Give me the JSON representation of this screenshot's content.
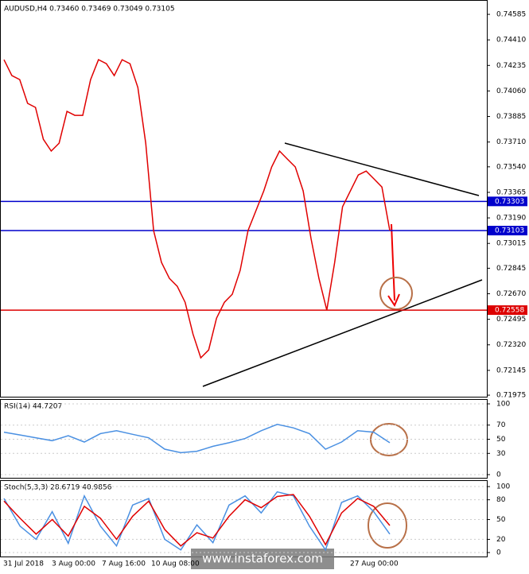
{
  "watermark": "www.instaforex.com",
  "time_labels": [
    "31 Jul 2018",
    "3 Aug 00:00",
    "7 Aug 16:00",
    "10 Aug 08:00",
    "27 Aug 00:00"
  ],
  "chart_data": [
    {
      "type": "line",
      "title": "AUDUSD,H4  0.73460 0.73469 0.73049 0.73105",
      "ylim": [
        0.71959,
        0.74667
      ],
      "yticks": [
        0.74585,
        {
          "value": 0.7441,
          "label": "0.74410"
        },
        0.74235,
        {
          "value": 0.7406,
          "label": "0.74060"
        },
        0.73885,
        {
          "value": 0.7371,
          "label": "0.73710"
        },
        {
          "value": 0.7354,
          "label": "0.73540"
        },
        0.73365,
        {
          "value": 0.7319,
          "label": "0.73190"
        },
        0.73015,
        0.72845,
        {
          "value": 0.7267,
          "label": "0.72670"
        },
        0.72495,
        {
          "value": 0.7232,
          "label": "0.72320"
        },
        0.72145,
        0.71975
      ],
      "levels": [
        {
          "value": 0.73303,
          "color": "#0000cc"
        },
        {
          "value": 0.73103,
          "color": "#0000cc"
        },
        {
          "value": 0.72558,
          "color": "#dd0000"
        }
      ],
      "series": [
        {
          "color": "#e00000",
          "values": [
            0.74274,
            0.74165,
            0.74138,
            0.73975,
            0.73947,
            0.73729,
            0.73648,
            0.73702,
            0.7392,
            0.73893,
            0.73893,
            0.74138,
            0.74274,
            0.74247,
            0.74165,
            0.74274,
            0.74247,
            0.74084,
            0.73702,
            0.73103,
            0.72885,
            0.72776,
            0.72721,
            0.72612,
            0.72394,
            0.72231,
            0.72285,
            0.72503,
            0.72612,
            0.72667,
            0.7283,
            0.73103,
            0.73239,
            0.73375,
            0.73539,
            0.73648,
            0.73593,
            0.73539,
            0.73375,
            0.73048,
            0.72776,
            0.72558,
            0.72885,
            0.73266,
            0.73375,
            0.73484,
            0.73511,
            0.73457,
            0.73402,
            0.73103
          ]
        }
      ]
    },
    {
      "type": "line",
      "title": "RSI(14) 44.7207",
      "ylim": [
        -4.5,
        105.6
      ],
      "yticks": [
        100,
        70,
        50,
        30,
        0
      ],
      "series": [
        {
          "color": "#4a90e2",
          "values": [
            60,
            56,
            52,
            48,
            55,
            46,
            58,
            62,
            57,
            52,
            36,
            31,
            33,
            40,
            45,
            51,
            62,
            71,
            66,
            58,
            36,
            46,
            62,
            60,
            45
          ]
        }
      ]
    },
    {
      "type": "line",
      "title": "Stoch(5,3,3) 28.6719 40.9856",
      "ylim": [
        -6,
        108.5
      ],
      "yticks": [
        100,
        80,
        50,
        20,
        0
      ],
      "series": [
        {
          "color": "#4a90e2",
          "values": [
            82,
            40,
            20,
            62,
            14,
            86,
            40,
            10,
            72,
            82,
            20,
            4,
            42,
            15,
            72,
            86,
            60,
            92,
            86,
            40,
            4,
            76,
            86,
            62,
            28
          ]
        },
        {
          "color": "#e00000",
          "values": [
            78,
            52,
            28,
            50,
            25,
            70,
            52,
            20,
            55,
            78,
            35,
            10,
            30,
            22,
            55,
            80,
            68,
            85,
            88,
            55,
            12,
            60,
            82,
            70,
            41
          ]
        }
      ]
    }
  ]
}
